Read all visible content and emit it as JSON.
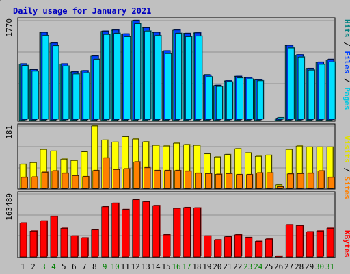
{
  "title": "Daily usage for January 2021",
  "colors": {
    "background": "#c0c0c0",
    "title": "#0000c0",
    "hits": "#008080",
    "files": "#0040ff",
    "pages": "#00e0ff",
    "visits": "#ffff00",
    "sites": "#ff8000",
    "kbytes": "#ff0000",
    "weekend_day": "#008000",
    "weekday": "#000000"
  },
  "chart_data": [
    {
      "type": "bar",
      "panel": "hits-files-pages",
      "legend": {
        "hits": "Hits",
        "files": "Files",
        "pages": "Pages",
        "sep": " / "
      },
      "ymax_label": "1770",
      "ylim": [
        0,
        1770
      ],
      "categories": [
        "1",
        "2",
        "3",
        "4",
        "5",
        "6",
        "7",
        "8",
        "9",
        "10",
        "11",
        "12",
        "13",
        "14",
        "15",
        "16",
        "17",
        "18",
        "19",
        "20",
        "21",
        "22",
        "23",
        "24",
        "25",
        "26",
        "27",
        "28",
        "29",
        "30",
        "31"
      ],
      "weekend": [
        false,
        false,
        true,
        true,
        false,
        false,
        false,
        false,
        true,
        true,
        false,
        false,
        false,
        false,
        false,
        true,
        true,
        false,
        false,
        false,
        false,
        false,
        true,
        true,
        false,
        false,
        false,
        false,
        false,
        true,
        true
      ],
      "series": [
        {
          "name": "Hits",
          "values": [
            1000,
            900,
            1560,
            1370,
            1000,
            860,
            880,
            1140,
            1580,
            1600,
            1530,
            1770,
            1640,
            1560,
            1230,
            1600,
            1540,
            1550,
            810,
            620,
            700,
            780,
            760,
            720,
            0,
            30,
            1330,
            1160,
            920,
            1030,
            1070
          ]
        },
        {
          "name": "Files",
          "values": [
            990,
            890,
            1550,
            1360,
            990,
            850,
            870,
            1130,
            1570,
            1590,
            1520,
            1760,
            1630,
            1550,
            1220,
            1590,
            1530,
            1540,
            790,
            610,
            690,
            770,
            750,
            710,
            0,
            30,
            1320,
            1150,
            910,
            1020,
            1070
          ]
        },
        {
          "name": "Pages",
          "values": [
            950,
            850,
            1480,
            1300,
            940,
            800,
            820,
            1060,
            1500,
            1520,
            1460,
            1690,
            1560,
            1480,
            1160,
            1520,
            1460,
            1470,
            750,
            580,
            660,
            730,
            710,
            680,
            0,
            25,
            1260,
            1100,
            870,
            970,
            1010
          ]
        }
      ]
    },
    {
      "type": "bar",
      "panel": "visits-sites",
      "legend": {
        "visits": "Visits",
        "sites": "Sites",
        "sep": " / "
      },
      "ymax_label": "181",
      "ylim": [
        0,
        181
      ],
      "categories": [
        "1",
        "2",
        "3",
        "4",
        "5",
        "6",
        "7",
        "8",
        "9",
        "10",
        "11",
        "12",
        "13",
        "14",
        "15",
        "16",
        "17",
        "18",
        "19",
        "20",
        "21",
        "22",
        "23",
        "24",
        "25",
        "26",
        "27",
        "28",
        "29",
        "30",
        "31"
      ],
      "series": [
        {
          "name": "Visits",
          "values": [
            70,
            75,
            113,
            108,
            85,
            81,
            106,
            181,
            140,
            134,
            150,
            143,
            135,
            125,
            123,
            131,
            127,
            125,
            100,
            91,
            98,
            115,
            103,
            93,
            96,
            10,
            113,
            123,
            120,
            120,
            120
          ]
        },
        {
          "name": "Sites",
          "values": [
            32,
            33,
            47,
            51,
            44,
            37,
            34,
            52,
            88,
            55,
            57,
            77,
            60,
            52,
            52,
            52,
            50,
            44,
            43,
            41,
            43,
            40,
            40,
            45,
            45,
            5,
            42,
            43,
            44,
            51,
            32
          ]
        }
      ]
    },
    {
      "type": "bar",
      "panel": "kbytes",
      "legend": {
        "kbytes": "KBytes"
      },
      "ymax_label": "163489",
      "ylim": [
        0,
        163489
      ],
      "categories": [
        "1",
        "2",
        "3",
        "4",
        "5",
        "6",
        "7",
        "8",
        "9",
        "10",
        "11",
        "12",
        "13",
        "14",
        "15",
        "16",
        "17",
        "18",
        "19",
        "20",
        "21",
        "22",
        "23",
        "24",
        "25",
        "26",
        "27",
        "28",
        "29",
        "30",
        "31"
      ],
      "series": [
        {
          "name": "KBytes",
          "values": [
            88000,
            67000,
            93000,
            105000,
            74000,
            54000,
            49000,
            70000,
            130000,
            139000,
            123000,
            148000,
            143000,
            133000,
            57000,
            126000,
            128000,
            127000,
            54000,
            44000,
            52000,
            57000,
            50000,
            40000,
            46000,
            2000,
            83000,
            81000,
            65000,
            67000,
            74000
          ]
        }
      ]
    }
  ]
}
